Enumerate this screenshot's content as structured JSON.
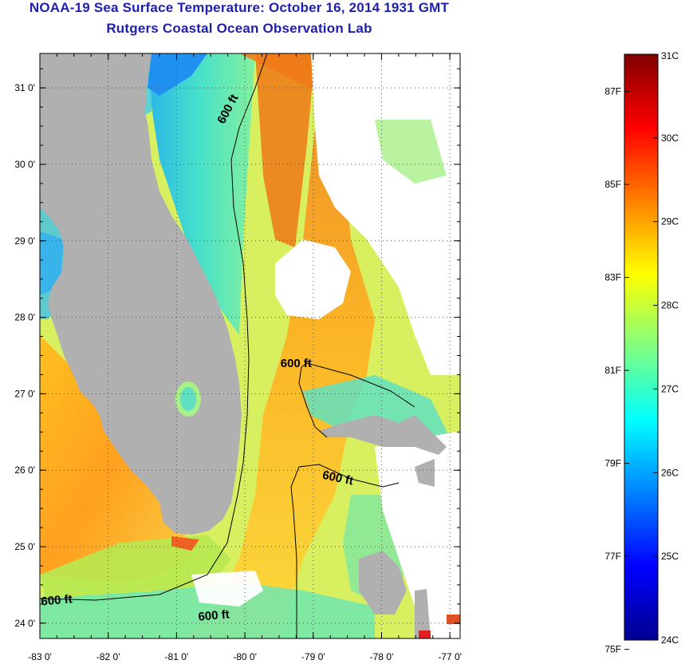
{
  "title": "NOAA-19 Sea Surface Temperature:  October 16, 2014 1931 GMT",
  "subtitle": "Rutgers Coastal Ocean Observation Lab",
  "map": {
    "lon_range": [
      -83,
      -76.85
    ],
    "lat_range": [
      23.8,
      31.45
    ],
    "x_ticks": [
      {
        "value": -83,
        "label": "-83 0'"
      },
      {
        "value": -82,
        "label": "-82 0'"
      },
      {
        "value": -81,
        "label": "-81 0'"
      },
      {
        "value": -80,
        "label": "-80 0'"
      },
      {
        "value": -79,
        "label": "-79 0'"
      },
      {
        "value": -78,
        "label": "-78 0'"
      },
      {
        "value": -77,
        "label": "-77 0'"
      }
    ],
    "y_ticks": [
      {
        "value": 24,
        "label": "24 0'"
      },
      {
        "value": 25,
        "label": "25 0'"
      },
      {
        "value": 26,
        "label": "26 0'"
      },
      {
        "value": 27,
        "label": "27 0'"
      },
      {
        "value": 28,
        "label": "28 0'"
      },
      {
        "value": 29,
        "label": "29 0'"
      },
      {
        "value": 30,
        "label": "30 0'"
      },
      {
        "value": 31,
        "label": "31 0'"
      }
    ],
    "grid": "dotted",
    "contour_labels": [
      {
        "text": "600 ft",
        "lon": -80.2,
        "lat": 30.7,
        "rotate": -62
      },
      {
        "text": "600 ft",
        "lon": -79.25,
        "lat": 27.35,
        "rotate": 0
      },
      {
        "text": "600 ft",
        "lon": -78.65,
        "lat": 25.85,
        "rotate": 12
      },
      {
        "text": "600 ft",
        "lon": -82.75,
        "lat": 24.25,
        "rotate": -5
      },
      {
        "text": "600 ft",
        "lon": -80.45,
        "lat": 24.05,
        "rotate": -5
      }
    ]
  },
  "colorbar": {
    "range_c": [
      24,
      31
    ],
    "celsius_ticks": [
      {
        "value": 31,
        "label": "31C"
      },
      {
        "value": 30,
        "label": "30C"
      },
      {
        "value": 29,
        "label": "29C"
      },
      {
        "value": 28,
        "label": "28C"
      },
      {
        "value": 27,
        "label": "27C"
      },
      {
        "value": 26,
        "label": "26C"
      },
      {
        "value": 25,
        "label": "25C"
      },
      {
        "value": 24,
        "label": "24C"
      }
    ],
    "fahrenheit_ticks": [
      {
        "value": 87,
        "label": "87F"
      },
      {
        "value": 85,
        "label": "85F"
      },
      {
        "value": 83,
        "label": "83F"
      },
      {
        "value": 81,
        "label": "81F"
      },
      {
        "value": 79,
        "label": "79F"
      },
      {
        "value": 77,
        "label": "77F"
      },
      {
        "value": 75,
        "label": "75F"
      }
    ],
    "colors": [
      "#00008f",
      "#0000ff",
      "#0080ff",
      "#00ffff",
      "#80ff80",
      "#ffff00",
      "#ff8000",
      "#ff0000",
      "#800000"
    ]
  },
  "colors": {
    "land": "#b0b0b0",
    "cloud": "#ffffff",
    "title": "#1f1fae"
  }
}
